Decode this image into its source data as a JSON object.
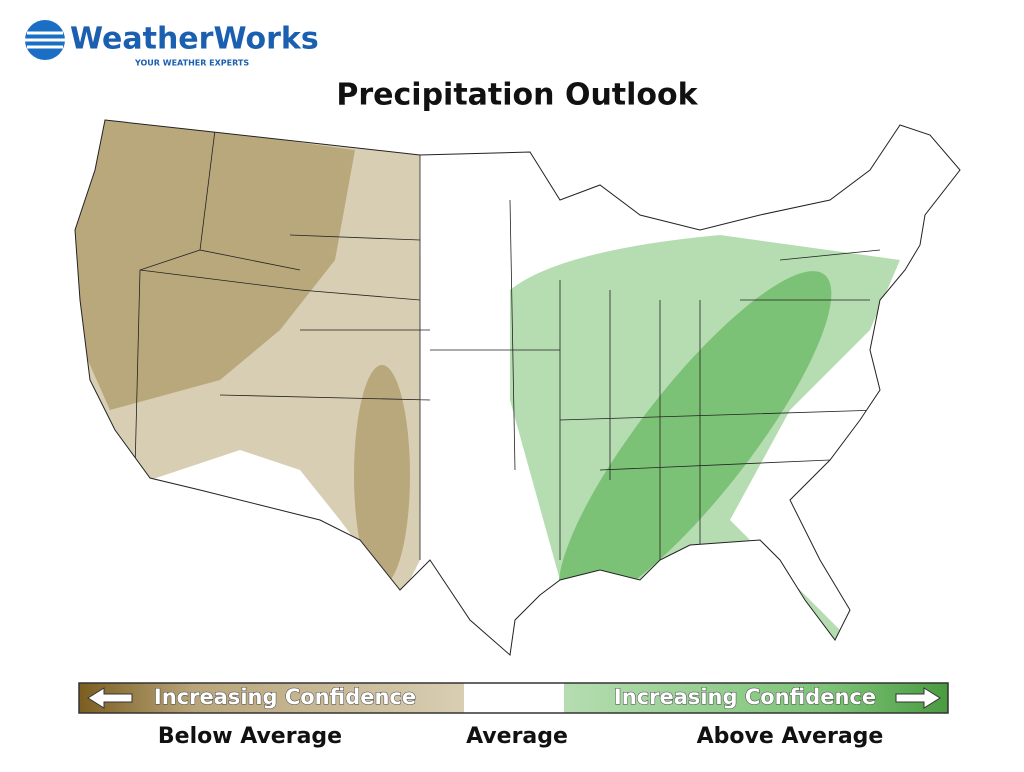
{
  "header": {
    "logo": "WeatherWorks",
    "tagline": "YOUR WEATHER EXPERTS",
    "title": "Precipitation Outlook"
  },
  "legend": {
    "left_bar": "Increasing Confidence",
    "right_bar": "Increasing Confidence",
    "labels": [
      "Below Average",
      "Average",
      "Above Average"
    ]
  }
}
